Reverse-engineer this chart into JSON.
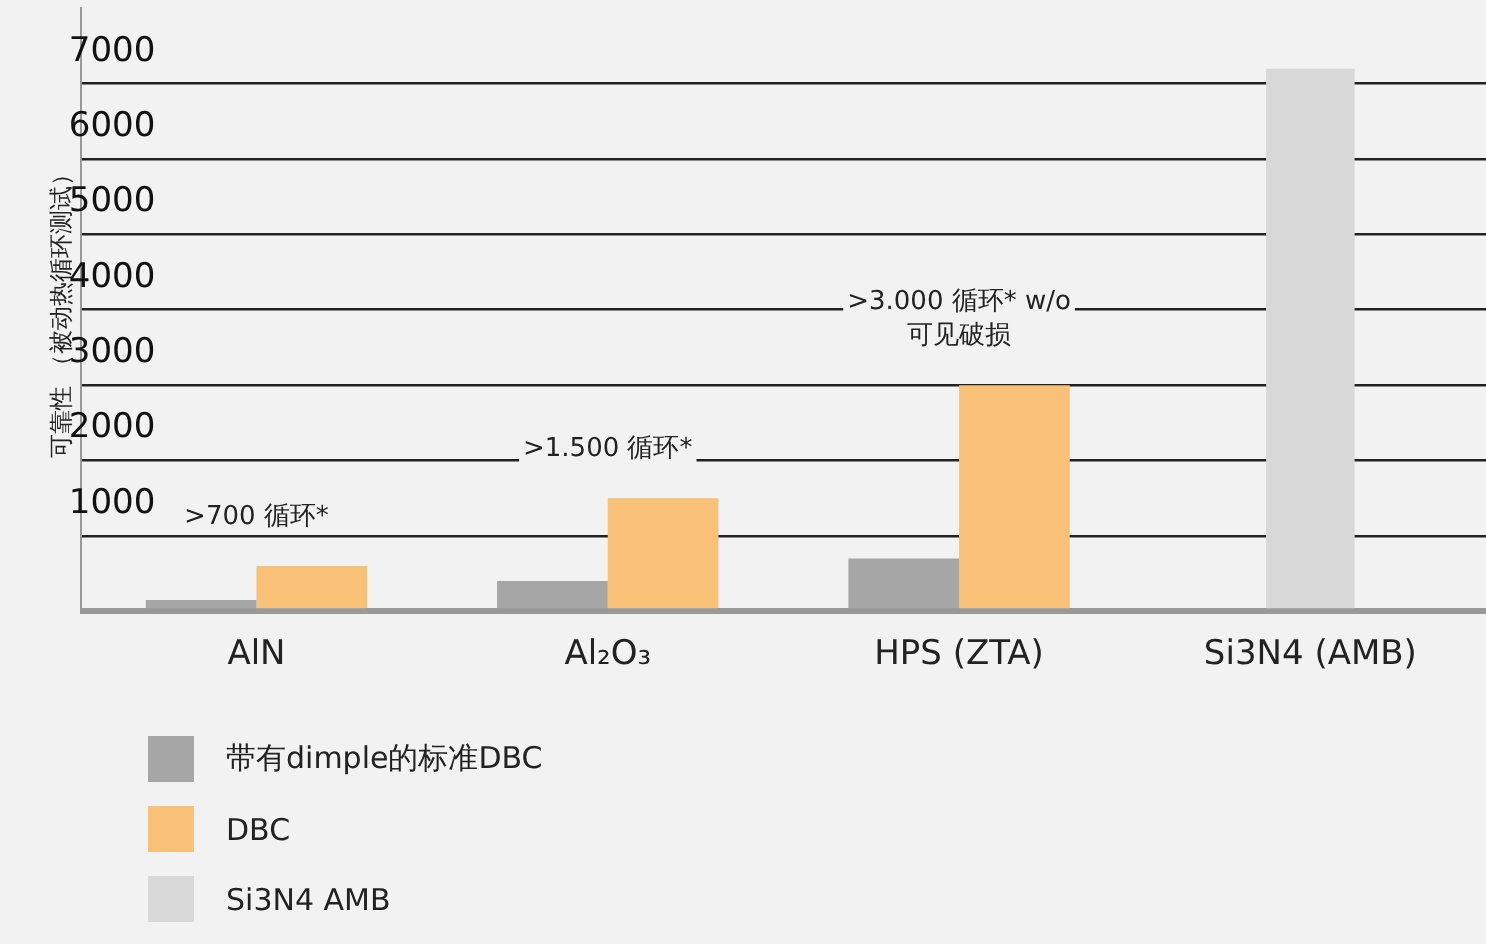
{
  "chart_data": {
    "type": "bar",
    "ylabel": "可靠性 （被动热循环测试）",
    "categories": [
      "AlN",
      "Al₂O₃",
      "HPS (ZTA)",
      "Si3N4 (AMB)"
    ],
    "series": [
      {
        "name": "带有dimple的标准DBC",
        "color": "#a6a6a6",
        "values": [
          150,
          400,
          700,
          null
        ]
      },
      {
        "name": "DBC",
        "color": "#f9c077",
        "values": [
          600,
          1500,
          3000,
          null
        ]
      },
      {
        "name": "Si3N4 AMB",
        "color": "#d8d8d8",
        "values": [
          null,
          null,
          null,
          7200
        ]
      }
    ],
    "ylim": [
      0,
      8000
    ],
    "yticks": [
      {
        "value": 0,
        "label": null
      },
      1000,
      2000,
      3000,
      4000,
      5000,
      6000,
      7000
    ],
    "grid": "y",
    "legend": "bottom left",
    "annotations": [
      {
        "text": ">700 循环*",
        "x": "AlN",
        "y": 600
      },
      {
        "text": ">1.500 循环*",
        "x": "Al₂O₃",
        "y": 1500
      },
      {
        "text": ">3.000 循环* w/o\n可见破损",
        "x": "HPS (ZTA)",
        "y": 3000
      }
    ]
  }
}
